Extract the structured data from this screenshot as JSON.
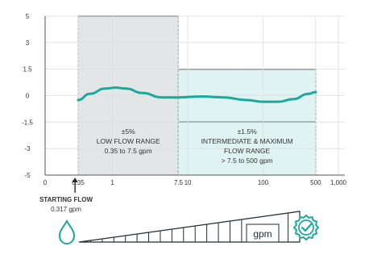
{
  "chart_data": {
    "type": "line",
    "x_scale": "log",
    "x_ticks": [
      "0",
      "0.35",
      "1",
      "7.5",
      "10",
      "100",
      "500",
      "1,000"
    ],
    "y_ticks": [
      "5",
      "3",
      "1.5",
      "0",
      "-1.5",
      "-3",
      "-5"
    ],
    "ylim": [
      -5,
      5
    ],
    "ranges": [
      {
        "name": "low-flow",
        "x_from": 0.35,
        "x_to": 7.5,
        "y_from": -5,
        "y_to": 5,
        "fill": "#e3e6e7",
        "label_lines": [
          "±5%",
          "LOW FLOW RANGE",
          "0.35 to 7.5 gpm"
        ]
      },
      {
        "name": "intermediate-maximum-flow",
        "x_from": 7.5,
        "x_to": 500,
        "y_from": -5,
        "y_to": 1.5,
        "fill": "#dff4f2",
        "label_lines": [
          "±1.5%",
          "INTERMEDIATE & MAXIMUM",
          "FLOW RANGE",
          "> 7.5 to 500 gpm"
        ]
      }
    ],
    "band_lines": [
      {
        "y": 1.5,
        "x_from": 7.5,
        "x_to": 500
      },
      {
        "y": -1.5,
        "x_from": 7.5,
        "x_to": 500
      }
    ],
    "series": [
      {
        "color": "#1aa99c",
        "points": [
          [
            0.35,
            -0.25
          ],
          [
            0.5,
            0.1
          ],
          [
            0.8,
            0.4
          ],
          [
            1.1,
            0.45
          ],
          [
            1.5,
            0.4
          ],
          [
            2.5,
            0.15
          ],
          [
            4.5,
            -0.1
          ],
          [
            7.5,
            -0.1
          ],
          [
            15,
            -0.05
          ],
          [
            30,
            -0.1
          ],
          [
            60,
            -0.25
          ],
          [
            100,
            -0.35
          ],
          [
            160,
            -0.35
          ],
          [
            250,
            -0.2
          ],
          [
            400,
            0.1
          ],
          [
            500,
            0.2
          ]
        ]
      }
    ]
  },
  "starting_flow": {
    "title": "STARTING FLOW",
    "value": "0.317 gpm",
    "x": 0.317
  },
  "meter_graphic": {
    "label": "gpm",
    "icons": [
      "water-drop-icon",
      "check-badge-icon"
    ]
  },
  "colors": {
    "accent": "#1aa99c",
    "axis": "#555555",
    "grid": "#dddddd",
    "dark": "#1f2d33"
  }
}
